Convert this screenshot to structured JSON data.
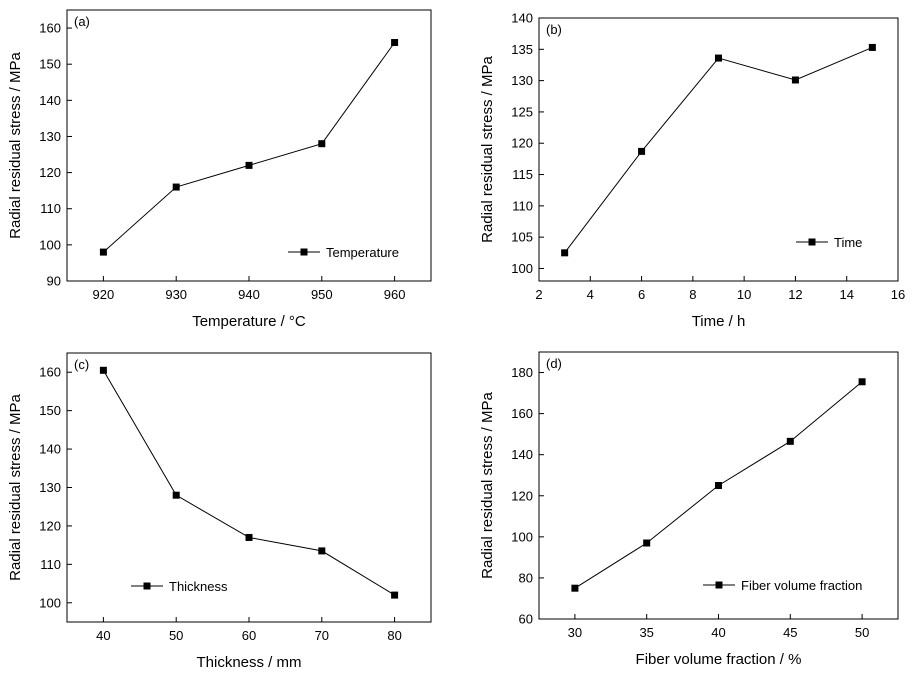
{
  "chart_data": [
    {
      "type": "line",
      "panel_label": "(a)",
      "xlabel": "Temperature / °C",
      "ylabel": "Radial residual stress / MPa",
      "xlim": [
        915,
        965
      ],
      "ylim": [
        90,
        165
      ],
      "xticks": [
        920,
        930,
        940,
        950,
        960
      ],
      "yticks": [
        90,
        100,
        110,
        120,
        130,
        140,
        150,
        160
      ],
      "legend_position": "lower-right",
      "series": [
        {
          "name": "Temperature",
          "x": [
            920,
            930,
            940,
            950,
            960
          ],
          "y": [
            98,
            116,
            122,
            128,
            156
          ]
        }
      ]
    },
    {
      "type": "line",
      "panel_label": "(b)",
      "xlabel": "Time / h",
      "ylabel": "Radial residual stress / MPa",
      "xlim": [
        2,
        16
      ],
      "ylim": [
        98,
        140
      ],
      "xticks": [
        2,
        4,
        6,
        8,
        10,
        12,
        14,
        16
      ],
      "yticks": [
        100,
        105,
        110,
        115,
        120,
        125,
        130,
        135,
        140
      ],
      "legend_position": "lower-right",
      "series": [
        {
          "name": "Time",
          "x": [
            3,
            6,
            9,
            12,
            15
          ],
          "y": [
            102.5,
            118.7,
            133.6,
            130.1,
            135.3
          ]
        }
      ]
    },
    {
      "type": "line",
      "panel_label": "(c)",
      "xlabel": "Thickness / mm",
      "ylabel": "Radial residual stress / MPa",
      "xlim": [
        35,
        85
      ],
      "ylim": [
        95,
        165
      ],
      "xticks": [
        40,
        50,
        60,
        70,
        80
      ],
      "yticks": [
        100,
        110,
        120,
        130,
        140,
        150,
        160
      ],
      "legend_position": "lower-left",
      "series": [
        {
          "name": "Thickness",
          "x": [
            40,
            50,
            60,
            70,
            80
          ],
          "y": [
            160.5,
            128,
            117,
            113.5,
            102
          ]
        }
      ]
    },
    {
      "type": "line",
      "panel_label": "(d)",
      "xlabel": "Fiber volume fraction / %",
      "ylabel": "Radial residual stress / MPa",
      "xlim": [
        27.5,
        52.5
      ],
      "ylim": [
        60,
        190
      ],
      "xticks": [
        30,
        35,
        40,
        45,
        50
      ],
      "yticks": [
        60,
        80,
        100,
        120,
        140,
        160,
        180
      ],
      "legend_position": "lower-right",
      "series": [
        {
          "name": "Fiber volume fraction",
          "x": [
            30,
            35,
            40,
            45,
            50
          ],
          "y": [
            75,
            97,
            125,
            146.5,
            175.5
          ]
        }
      ]
    }
  ]
}
